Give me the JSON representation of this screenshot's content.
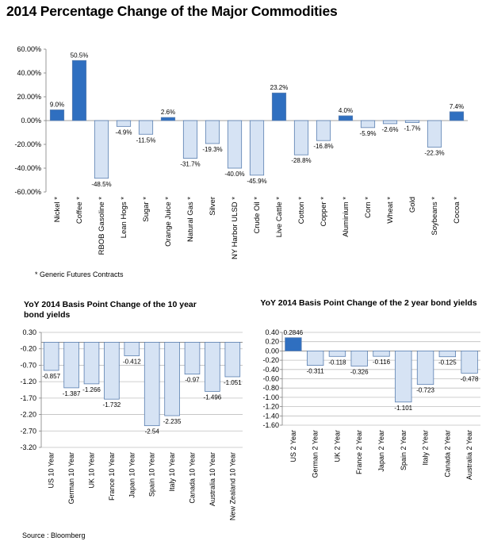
{
  "title": "2014 Percentage Change of the Major Commodities",
  "footnote": "* Generic Futures Contracts",
  "source": "Source : Bloomberg",
  "colors": {
    "positive": "#2f6fc0",
    "negative": "#d6e3f4",
    "border": "#5a7fb0",
    "grid": "#bfbfbf",
    "axis": "#808080"
  },
  "chart_data": [
    {
      "type": "bar",
      "title": "2014 Percentage Change of the Major Commodities",
      "categories": [
        "Nickel *",
        "Coffee *",
        "RBOB Gasoline *",
        "Lean Hogs *",
        "Sugar *",
        "Orange Juice *",
        "Natural Gas *",
        "Silver",
        "NY Harbor ULSD *",
        "Crude Oil *",
        "Live Cattle *",
        "Cotton *",
        "Copper *",
        "Aluminium *",
        "Corn *",
        "Wheat *",
        "Gold",
        "Soybeans *",
        "Cocoa *"
      ],
      "values": [
        9.0,
        50.5,
        -48.5,
        -4.9,
        -11.5,
        2.6,
        -31.7,
        -19.3,
        -40.0,
        -45.9,
        23.2,
        -28.8,
        -16.8,
        4.0,
        -5.9,
        -2.6,
        -1.7,
        -22.3,
        7.4
      ],
      "value_labels": [
        "9.0%",
        "50.5%",
        "-48.5%",
        "-4.9%",
        "-11.5%",
        "2.6%",
        "-31.7%",
        "-19.3%",
        "-40.0%",
        "-45.9%",
        "23.2%",
        "-28.8%",
        "-16.8%",
        "4.0%",
        "-5.9%",
        "-2.6%",
        "-1.7%",
        "-22.3%",
        "7.4%"
      ],
      "yticks": [
        "60.00%",
        "40.00%",
        "20.00%",
        "0.00%",
        "-20.00%",
        "-40.00%",
        "-60.00%"
      ],
      "ylim": [
        -60,
        60
      ],
      "grid": false
    },
    {
      "type": "bar",
      "title": "YoY 2014 Basis Point Change of the 10 year bond yields",
      "categories": [
        "US 10 Year",
        "German 10 Year",
        "UK 10 Year",
        "France 10 Year",
        "Japan 10 Year",
        "Spain 10 Year",
        "Italy 10 Year",
        "Canada 10 Year",
        "Australia 10 Year",
        "New Zealand 10 Year"
      ],
      "values": [
        -0.857,
        -1.387,
        -1.266,
        -1.732,
        -0.412,
        -2.54,
        -2.235,
        -0.97,
        -1.496,
        -1.051
      ],
      "value_labels": [
        "-0.857",
        "-1.387",
        "-1.266",
        "-1.732",
        "-0.412",
        "-2.54",
        "-2.235",
        "-0.97",
        "-1.496",
        "-1.051"
      ],
      "yticks": [
        "0.30",
        "-0.20",
        "-0.70",
        "-1.20",
        "-1.70",
        "-2.20",
        "-2.70",
        "-3.20"
      ],
      "ylim": [
        -3.2,
        0.3
      ],
      "grid": true
    },
    {
      "type": "bar",
      "title": "YoY 2014 Basis Point Change of the 2 year bond yields",
      "categories": [
        "US 2 Year",
        "German 2 Year",
        "UK 2 Year",
        "France 2 Year",
        "Japan 2 Year",
        "Spain 2 Year",
        "Italy 2 Year",
        "Canada 2 Year",
        "Australia 2 Year"
      ],
      "values": [
        0.2846,
        -0.311,
        -0.118,
        -0.326,
        -0.116,
        -1.101,
        -0.723,
        -0.125,
        -0.478
      ],
      "value_labels": [
        "0.2846",
        "-0.311",
        "-0.118",
        "-0.326",
        "-0.116",
        "-1.101",
        "-0.723",
        "-0.125",
        "-0.478"
      ],
      "yticks": [
        "0.40",
        "0.20",
        "0.00",
        "-0.20",
        "-0.40",
        "-0.60",
        "-0.80",
        "-1.00",
        "-1.20",
        "-1.40",
        "-1.60"
      ],
      "ylim": [
        -1.6,
        0.4
      ],
      "grid": true
    }
  ]
}
